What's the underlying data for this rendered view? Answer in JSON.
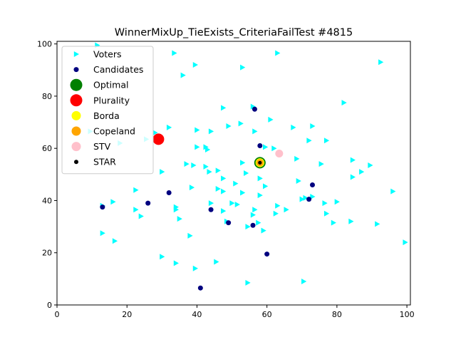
{
  "chart_data": {
    "type": "scatter",
    "title": "WinnerMixUp_TieExists_CriteriaFailTest #4815",
    "xlabel": "",
    "ylabel": "",
    "xlim": [
      0,
      101
    ],
    "ylim": [
      0,
      101
    ],
    "x_ticks": [
      0,
      20,
      40,
      60,
      80,
      100
    ],
    "y_ticks": [
      0,
      20,
      40,
      60,
      80,
      100
    ],
    "grid": false,
    "legend_position": "top-left",
    "series": [
      {
        "name": "Voters",
        "marker": "triangle-right",
        "color": "#00ffff",
        "points": [
          [
            11.5,
            99.5
          ],
          [
            33.5,
            96.5
          ],
          [
            63,
            96.5
          ],
          [
            92.5,
            93
          ],
          [
            39.5,
            92
          ],
          [
            53,
            91
          ],
          [
            36,
            88
          ],
          [
            82,
            77.5
          ],
          [
            47.5,
            75.5
          ],
          [
            56,
            76
          ],
          [
            61,
            71
          ],
          [
            52.5,
            69.5
          ],
          [
            49,
            68.5
          ],
          [
            67.5,
            68
          ],
          [
            73,
            68.5
          ],
          [
            32,
            68
          ],
          [
            40,
            67
          ],
          [
            44,
            66.5
          ],
          [
            56.5,
            66.5
          ],
          [
            72,
            63
          ],
          [
            77,
            63
          ],
          [
            28,
            66
          ],
          [
            9.5,
            66.5
          ],
          [
            18,
            62
          ],
          [
            25.5,
            63.5
          ],
          [
            59.5,
            60.5
          ],
          [
            62,
            60
          ],
          [
            42.5,
            60.5
          ],
          [
            40,
            60.5
          ],
          [
            43,
            59.5
          ],
          [
            68.5,
            56
          ],
          [
            84.5,
            55.5
          ],
          [
            53,
            54.5
          ],
          [
            75.5,
            54
          ],
          [
            37,
            54
          ],
          [
            39,
            53.5
          ],
          [
            42.5,
            53
          ],
          [
            58.5,
            55
          ],
          [
            89.5,
            53.5
          ],
          [
            87,
            51
          ],
          [
            46,
            51.5
          ],
          [
            43.5,
            51
          ],
          [
            30,
            51
          ],
          [
            54,
            50.5
          ],
          [
            84.5,
            49
          ],
          [
            47.5,
            48.5
          ],
          [
            58,
            48.5
          ],
          [
            69,
            47.5
          ],
          [
            51,
            46.5
          ],
          [
            59.5,
            45.5
          ],
          [
            46,
            44.5
          ],
          [
            38.5,
            45
          ],
          [
            22.5,
            44
          ],
          [
            47.5,
            43.5
          ],
          [
            53,
            43
          ],
          [
            96,
            43.5
          ],
          [
            58,
            42
          ],
          [
            71,
            41
          ],
          [
            73,
            41.5
          ],
          [
            70,
            40.5
          ],
          [
            16,
            39.5
          ],
          [
            50,
            39
          ],
          [
            80,
            39.5
          ],
          [
            51.5,
            38.5
          ],
          [
            44,
            39
          ],
          [
            76.5,
            39
          ],
          [
            63,
            38
          ],
          [
            13,
            38
          ],
          [
            34,
            37.5
          ],
          [
            34,
            36.5
          ],
          [
            22.5,
            36.5
          ],
          [
            65.5,
            36.5
          ],
          [
            56.5,
            36.5
          ],
          [
            47.5,
            36
          ],
          [
            62.5,
            35
          ],
          [
            77,
            35
          ],
          [
            56,
            34.5
          ],
          [
            24,
            34
          ],
          [
            35,
            33
          ],
          [
            48.5,
            32
          ],
          [
            57.5,
            31.5
          ],
          [
            79,
            31.5
          ],
          [
            84,
            32
          ],
          [
            91.5,
            31
          ],
          [
            54.5,
            30
          ],
          [
            59,
            28.5
          ],
          [
            13,
            27.5
          ],
          [
            38,
            26.5
          ],
          [
            16.5,
            24.5
          ],
          [
            99.5,
            24
          ],
          [
            30,
            18.5
          ],
          [
            45.5,
            16.5
          ],
          [
            34,
            16
          ],
          [
            39.5,
            14
          ],
          [
            70.5,
            9
          ],
          [
            54.5,
            8.5
          ]
        ]
      },
      {
        "name": "Candidates",
        "marker": "circle",
        "color": "#00007f",
        "points": [
          [
            56.5,
            75
          ],
          [
            58,
            61
          ],
          [
            73,
            46
          ],
          [
            32,
            43
          ],
          [
            26,
            39
          ],
          [
            72,
            40.5
          ],
          [
            13,
            37.5
          ],
          [
            44,
            36.5
          ],
          [
            49,
            31.5
          ],
          [
            56,
            30.5
          ],
          [
            60,
            19.5
          ],
          [
            41,
            6.5
          ]
        ]
      },
      {
        "name": "Optimal",
        "marker": "big-circle",
        "color": "#008000",
        "points": [
          [
            58,
            54.5
          ]
        ]
      },
      {
        "name": "Plurality",
        "marker": "big-circle",
        "color": "#ff0000",
        "points": [
          [
            29,
            63.5
          ]
        ]
      },
      {
        "name": "Borda",
        "marker": "circle",
        "color": "#ffff00",
        "points": [
          [
            58,
            54.5
          ]
        ]
      },
      {
        "name": "Copeland",
        "marker": "circle",
        "color": "#ffa500",
        "points": [
          [
            58,
            54.5
          ]
        ]
      },
      {
        "name": "STV",
        "marker": "circle",
        "color": "#ffc0cb",
        "points": [
          [
            63.5,
            58
          ]
        ]
      },
      {
        "name": "STAR",
        "marker": "small-circle",
        "color": "#000000",
        "points": [
          [
            58,
            54.5
          ]
        ]
      }
    ]
  }
}
